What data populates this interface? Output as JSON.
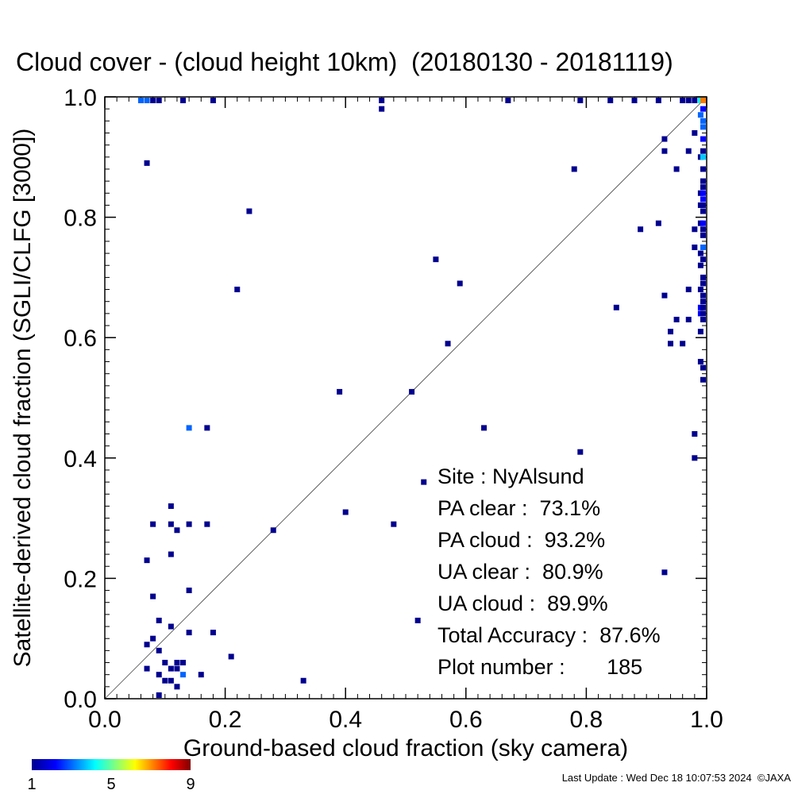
{
  "chart_data": {
    "type": "scatter",
    "title": "Cloud cover - (cloud height 10km)  (20180130 - 20181119)",
    "xlabel": "Ground-based cloud fraction (sky camera)",
    "ylabel": "Satellite-derived cloud fraction (SGLI/CLFG [3000])",
    "xlim": [
      0,
      1
    ],
    "ylim": [
      0,
      1
    ],
    "xticks": [
      "0.0",
      "0.2",
      "0.4",
      "0.6",
      "0.8",
      "1.0"
    ],
    "yticks": [
      "0.0",
      "0.2",
      "0.4",
      "0.6",
      "0.8",
      "1.0"
    ],
    "reference_line": "1:1 diagonal",
    "grid": false,
    "colorbar": {
      "min": 1,
      "max": 9,
      "tick_labels": [
        "1",
        "5",
        "9"
      ],
      "colors": [
        "#00008f",
        "#0000ff",
        "#00ffff",
        "#ffff00",
        "#ff0000",
        "#800000"
      ]
    },
    "stats": [
      {
        "label": "Site : NyAlsund"
      },
      {
        "label": "PA clear :  73.1%"
      },
      {
        "label": "PA cloud :  93.2%"
      },
      {
        "label": "UA clear :  80.9%"
      },
      {
        "label": "UA cloud :  89.9%"
      },
      {
        "label": "Total Accuracy :  87.6%"
      },
      {
        "label": "Plot number :       185"
      }
    ],
    "points": [
      {
        "x": 0.07,
        "y": 0.89,
        "c": 1
      },
      {
        "x": 0.24,
        "y": 0.81,
        "c": 1
      },
      {
        "x": 0.22,
        "y": 0.68,
        "c": 1
      },
      {
        "x": 0.46,
        "y": 0.98,
        "c": 1
      },
      {
        "x": 0.39,
        "y": 0.51,
        "c": 1
      },
      {
        "x": 0.51,
        "y": 0.51,
        "c": 1
      },
      {
        "x": 0.55,
        "y": 0.73,
        "c": 1
      },
      {
        "x": 0.59,
        "y": 0.69,
        "c": 1
      },
      {
        "x": 0.57,
        "y": 0.59,
        "c": 1
      },
      {
        "x": 0.63,
        "y": 0.45,
        "c": 1
      },
      {
        "x": 0.79,
        "y": 0.41,
        "c": 1
      },
      {
        "x": 0.53,
        "y": 0.36,
        "c": 1
      },
      {
        "x": 0.4,
        "y": 0.31,
        "c": 1
      },
      {
        "x": 0.48,
        "y": 0.29,
        "c": 1
      },
      {
        "x": 0.28,
        "y": 0.28,
        "c": 1
      },
      {
        "x": 0.52,
        "y": 0.13,
        "c": 1
      },
      {
        "x": 0.33,
        "y": 0.03,
        "c": 1
      },
      {
        "x": 0.21,
        "y": 0.07,
        "c": 1
      },
      {
        "x": 0.14,
        "y": 0.45,
        "c": 3
      },
      {
        "x": 0.17,
        "y": 0.45,
        "c": 1
      },
      {
        "x": 0.11,
        "y": 0.32,
        "c": 1
      },
      {
        "x": 0.08,
        "y": 0.29,
        "c": 1
      },
      {
        "x": 0.11,
        "y": 0.29,
        "c": 1
      },
      {
        "x": 0.12,
        "y": 0.28,
        "c": 1
      },
      {
        "x": 0.14,
        "y": 0.29,
        "c": 1
      },
      {
        "x": 0.17,
        "y": 0.29,
        "c": 1
      },
      {
        "x": 0.11,
        "y": 0.24,
        "c": 1
      },
      {
        "x": 0.07,
        "y": 0.23,
        "c": 1
      },
      {
        "x": 0.08,
        "y": 0.17,
        "c": 1
      },
      {
        "x": 0.14,
        "y": 0.18,
        "c": 1
      },
      {
        "x": 0.09,
        "y": 0.13,
        "c": 1
      },
      {
        "x": 0.11,
        "y": 0.12,
        "c": 1
      },
      {
        "x": 0.14,
        "y": 0.11,
        "c": 1
      },
      {
        "x": 0.18,
        "y": 0.11,
        "c": 1
      },
      {
        "x": 0.07,
        "y": 0.09,
        "c": 1
      },
      {
        "x": 0.08,
        "y": 0.1,
        "c": 1
      },
      {
        "x": 0.09,
        "y": 0.08,
        "c": 1
      },
      {
        "x": 0.1,
        "y": 0.06,
        "c": 1
      },
      {
        "x": 0.12,
        "y": 0.06,
        "c": 1
      },
      {
        "x": 0.13,
        "y": 0.06,
        "c": 1
      },
      {
        "x": 0.07,
        "y": 0.05,
        "c": 1
      },
      {
        "x": 0.11,
        "y": 0.05,
        "c": 1
      },
      {
        "x": 0.12,
        "y": 0.05,
        "c": 1
      },
      {
        "x": 0.09,
        "y": 0.04,
        "c": 1
      },
      {
        "x": 0.1,
        "y": 0.03,
        "c": 1
      },
      {
        "x": 0.11,
        "y": 0.03,
        "c": 1
      },
      {
        "x": 0.13,
        "y": 0.04,
        "c": 3
      },
      {
        "x": 0.16,
        "y": 0.04,
        "c": 1
      },
      {
        "x": 0.12,
        "y": 0.02,
        "c": 1
      },
      {
        "x": 0.09,
        "y": 0.0,
        "c": 1
      },
      {
        "x": 0.78,
        "y": 0.88,
        "c": 1
      },
      {
        "x": 0.92,
        "y": 0.79,
        "c": 1
      },
      {
        "x": 0.89,
        "y": 0.78,
        "c": 1
      },
      {
        "x": 0.85,
        "y": 0.65,
        "c": 1
      },
      {
        "x": 0.93,
        "y": 0.93,
        "c": 1
      },
      {
        "x": 0.93,
        "y": 0.91,
        "c": 1
      },
      {
        "x": 0.95,
        "y": 0.88,
        "c": 1
      },
      {
        "x": 0.97,
        "y": 0.91,
        "c": 1
      },
      {
        "x": 0.98,
        "y": 0.94,
        "c": 1
      },
      {
        "x": 0.93,
        "y": 0.67,
        "c": 1
      },
      {
        "x": 0.94,
        "y": 0.61,
        "c": 1
      },
      {
        "x": 0.94,
        "y": 0.59,
        "c": 1
      },
      {
        "x": 0.95,
        "y": 0.63,
        "c": 1
      },
      {
        "x": 0.96,
        "y": 0.59,
        "c": 1
      },
      {
        "x": 0.97,
        "y": 0.63,
        "c": 1
      },
      {
        "x": 0.97,
        "y": 0.68,
        "c": 1
      },
      {
        "x": 0.98,
        "y": 0.44,
        "c": 1
      },
      {
        "x": 0.98,
        "y": 0.4,
        "c": 1
      },
      {
        "x": 0.99,
        "y": 0.56,
        "c": 1
      },
      {
        "x": 1.0,
        "y": 0.55,
        "c": 1
      },
      {
        "x": 1.0,
        "y": 0.53,
        "c": 1
      },
      {
        "x": 0.93,
        "y": 0.21,
        "c": 1
      },
      {
        "x": 0.98,
        "y": 0.75,
        "c": 1
      },
      {
        "x": 0.98,
        "y": 0.78,
        "c": 1
      },
      {
        "x": 0.99,
        "y": 0.74,
        "c": 1
      },
      {
        "x": 0.99,
        "y": 0.72,
        "c": 1
      },
      {
        "x": 0.99,
        "y": 0.68,
        "c": 1
      },
      {
        "x": 0.99,
        "y": 0.65,
        "c": 2
      },
      {
        "x": 0.99,
        "y": 0.64,
        "c": 2
      },
      {
        "x": 0.99,
        "y": 0.61,
        "c": 1
      },
      {
        "x": 0.99,
        "y": 0.9,
        "c": 1
      },
      {
        "x": 0.99,
        "y": 0.82,
        "c": 1
      },
      {
        "x": 0.99,
        "y": 0.84,
        "c": 1
      },
      {
        "x": 0.99,
        "y": 0.79,
        "c": 1
      },
      {
        "x": 1.0,
        "y": 0.96,
        "c": 3
      },
      {
        "x": 1.0,
        "y": 0.95,
        "c": 3
      },
      {
        "x": 1.0,
        "y": 0.93,
        "c": 2
      },
      {
        "x": 1.0,
        "y": 0.91,
        "c": 1
      },
      {
        "x": 1.0,
        "y": 0.9,
        "c": 4
      },
      {
        "x": 1.0,
        "y": 0.88,
        "c": 1
      },
      {
        "x": 1.0,
        "y": 0.86,
        "c": 1
      },
      {
        "x": 1.0,
        "y": 0.85,
        "c": 1
      },
      {
        "x": 1.0,
        "y": 0.84,
        "c": 2
      },
      {
        "x": 1.0,
        "y": 0.83,
        "c": 2
      },
      {
        "x": 1.0,
        "y": 0.82,
        "c": 1
      },
      {
        "x": 1.0,
        "y": 0.81,
        "c": 1
      },
      {
        "x": 1.0,
        "y": 0.79,
        "c": 2
      },
      {
        "x": 1.0,
        "y": 0.78,
        "c": 1
      },
      {
        "x": 1.0,
        "y": 0.77,
        "c": 1
      },
      {
        "x": 1.0,
        "y": 0.75,
        "c": 3
      },
      {
        "x": 1.0,
        "y": 0.73,
        "c": 1
      },
      {
        "x": 1.0,
        "y": 0.7,
        "c": 1
      },
      {
        "x": 1.0,
        "y": 0.69,
        "c": 1
      },
      {
        "x": 1.0,
        "y": 0.67,
        "c": 1
      },
      {
        "x": 1.0,
        "y": 0.66,
        "c": 1
      },
      {
        "x": 1.0,
        "y": 0.65,
        "c": 1
      },
      {
        "x": 1.0,
        "y": 0.64,
        "c": 1
      },
      {
        "x": 1.0,
        "y": 0.63,
        "c": 1
      },
      {
        "x": 1.0,
        "y": 0.98,
        "c": 2
      },
      {
        "x": 0.99,
        "y": 0.97,
        "c": 3
      },
      {
        "x": 0.06,
        "y": 1.0,
        "c": 3
      },
      {
        "x": 0.07,
        "y": 1.0,
        "c": 3
      },
      {
        "x": 0.08,
        "y": 1.0,
        "c": 1
      },
      {
        "x": 0.09,
        "y": 1.0,
        "c": 1
      },
      {
        "x": 0.13,
        "y": 1.0,
        "c": 1
      },
      {
        "x": 0.18,
        "y": 1.0,
        "c": 1
      },
      {
        "x": 0.46,
        "y": 1.0,
        "c": 1
      },
      {
        "x": 0.67,
        "y": 1.0,
        "c": 1
      },
      {
        "x": 0.79,
        "y": 1.0,
        "c": 1
      },
      {
        "x": 0.84,
        "y": 1.0,
        "c": 1
      },
      {
        "x": 0.88,
        "y": 1.0,
        "c": 1
      },
      {
        "x": 0.92,
        "y": 1.0,
        "c": 1
      },
      {
        "x": 0.96,
        "y": 1.0,
        "c": 1
      },
      {
        "x": 0.97,
        "y": 1.0,
        "c": 1
      },
      {
        "x": 0.98,
        "y": 1.0,
        "c": 1
      },
      {
        "x": 0.99,
        "y": 1.0,
        "c": 5
      },
      {
        "x": 1.0,
        "y": 1.0,
        "c": 8
      }
    ]
  },
  "footer": {
    "last_update": "Last Update : Wed Dec 18 10:07:53 2024  ©JAXA"
  }
}
